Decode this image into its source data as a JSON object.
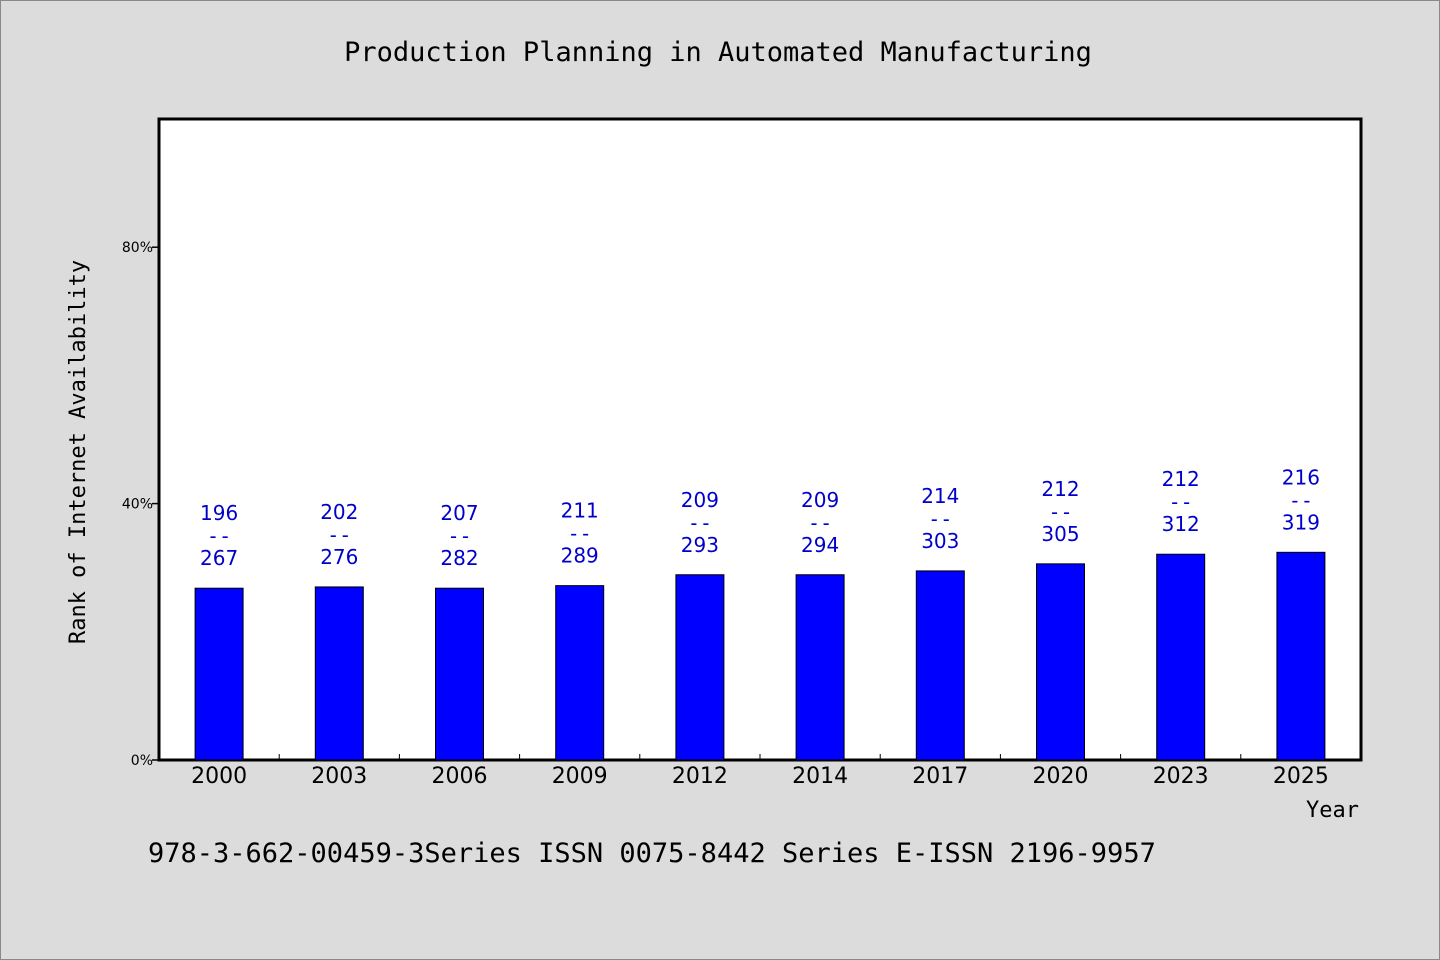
{
  "chart_data": {
    "type": "bar",
    "title": "Production Planning in Automated Manufacturing",
    "xlabel": "Year",
    "ylabel": "Rank of Internet Availability",
    "footer": "978-3-662-00459-3Series ISSN 0075-8442 Series E-ISSN 2196-9957",
    "categories": [
      "2000",
      "2003",
      "2006",
      "2009",
      "2012",
      "2014",
      "2017",
      "2020",
      "2023",
      "2025"
    ],
    "values": [
      26.8,
      27.0,
      26.8,
      27.2,
      28.9,
      28.9,
      29.5,
      30.6,
      32.1,
      32.4
    ],
    "label_top": [
      "196",
      "202",
      "207",
      "211",
      "209",
      "209",
      "214",
      "212",
      "212",
      "216"
    ],
    "label_sep": "--",
    "label_bottom": [
      "267",
      "276",
      "282",
      "289",
      "293",
      "294",
      "303",
      "305",
      "312",
      "319"
    ],
    "ylim": [
      0,
      100
    ],
    "yticks": [
      0,
      40,
      80
    ],
    "ytick_labels": [
      "0%",
      "40%",
      "80%"
    ],
    "grid": false,
    "bar_color": "#0000ff",
    "label_color": "#0000cc"
  }
}
